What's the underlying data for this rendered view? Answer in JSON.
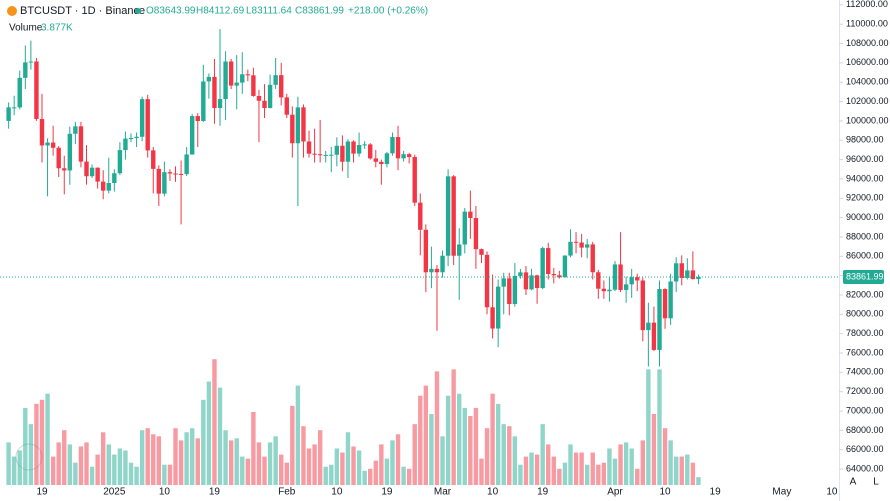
{
  "chart_data": {
    "type": "candlestick",
    "symbol": "BTCUSDT · 1D · Binance",
    "legend": {
      "open": "O83643.99",
      "high": "H84112.69",
      "low": "L83111.64",
      "close": "C83861.99",
      "change": "+218.00 (+0.26%)"
    },
    "volume_label": "Volume",
    "volume_value": "3.877K",
    "last_price": {
      "value": 83861.99,
      "label": "83861.99"
    },
    "colors": {
      "up": "#22ab94",
      "down": "#f23645"
    },
    "ylim": [
      60700,
      112500
    ],
    "yticks": [
      {
        "value": 64000,
        "label": "64000.00"
      },
      {
        "value": 66000,
        "label": "66000.00"
      },
      {
        "value": 68000,
        "label": "68000.00"
      },
      {
        "value": 70000,
        "label": "70000.00"
      },
      {
        "value": 72000,
        "label": "72000.00"
      },
      {
        "value": 74000,
        "label": "74000.00"
      },
      {
        "value": 76000,
        "label": "76000.00"
      },
      {
        "value": 78000,
        "label": "78000.00"
      },
      {
        "value": 80000,
        "label": "80000.00"
      },
      {
        "value": 82000,
        "label": "82000.00"
      },
      {
        "value": 84000,
        "label": "84000.00"
      },
      {
        "value": 86000,
        "label": "86000.00"
      },
      {
        "value": 88000,
        "label": "88000.00"
      },
      {
        "value": 90000,
        "label": "90000.00"
      },
      {
        "value": 92000,
        "label": "92000.00"
      },
      {
        "value": 94000,
        "label": "94000.00"
      },
      {
        "value": 96000,
        "label": "96000.00"
      },
      {
        "value": 98000,
        "label": "98000.00"
      },
      {
        "value": 100000,
        "label": "100000.00"
      },
      {
        "value": 102000,
        "label": "102000.00"
      },
      {
        "value": 104000,
        "label": "104000.00"
      },
      {
        "value": 106000,
        "label": "106000.00"
      },
      {
        "value": 108000,
        "label": "108000.00"
      },
      {
        "value": 110000,
        "label": "110000.00"
      },
      {
        "value": 112000,
        "label": "112000.00"
      }
    ],
    "xticks": [
      {
        "value": 6,
        "label": "19"
      },
      {
        "value": 19,
        "label": "2025"
      },
      {
        "value": 28,
        "label": "10"
      },
      {
        "value": 37,
        "label": "19"
      },
      {
        "value": 50,
        "label": "Feb"
      },
      {
        "value": 59,
        "label": "10"
      },
      {
        "value": 68,
        "label": "19"
      },
      {
        "value": 78,
        "label": "Mar"
      },
      {
        "value": 87,
        "label": "10"
      },
      {
        "value": 96,
        "label": "19"
      },
      {
        "value": 109,
        "label": "Apr"
      },
      {
        "value": 118,
        "label": "10"
      },
      {
        "value": 127,
        "label": "19"
      },
      {
        "value": 139,
        "label": "May"
      },
      {
        "value": 148,
        "label": "10"
      }
    ],
    "volume_lim": [
      0,
      70000
    ],
    "candles": [
      [
        100000,
        101900,
        99200,
        101400
      ],
      [
        101400,
        102600,
        100600,
        101400
      ],
      [
        101400,
        105200,
        101200,
        104450
      ],
      [
        104450,
        107800,
        103300,
        106050
      ],
      [
        106050,
        108300,
        105300,
        106140
      ],
      [
        106140,
        106500,
        100000,
        100200
      ],
      [
        100200,
        102800,
        95700,
        97460
      ],
      [
        97460,
        98200,
        92200,
        97760
      ],
      [
        97760,
        99500,
        96400,
        97220
      ],
      [
        97220,
        97400,
        94200,
        95100
      ],
      [
        95100,
        96400,
        92400,
        94880
      ],
      [
        94880,
        99400,
        93400,
        98670
      ],
      [
        98670,
        99900,
        97600,
        99440
      ],
      [
        99440,
        99900,
        95200,
        95790
      ],
      [
        95790,
        97500,
        93400,
        94280
      ],
      [
        94280,
        95500,
        94100,
        95160
      ],
      [
        95160,
        95200,
        93000,
        93720
      ],
      [
        93720,
        94900,
        91900,
        92790
      ],
      [
        92790,
        96200,
        92500,
        93580
      ],
      [
        93580,
        95000,
        92700,
        94590
      ],
      [
        94590,
        97800,
        94400,
        96980
      ],
      [
        96980,
        98900,
        96000,
        98170
      ],
      [
        98170,
        98700,
        97800,
        98230
      ],
      [
        98230,
        98800,
        97300,
        98360
      ],
      [
        98360,
        102500,
        97900,
        102250
      ],
      [
        102250,
        102700,
        96200,
        96950
      ],
      [
        96950,
        97300,
        92500,
        95040
      ],
      [
        95040,
        95400,
        91200,
        92480
      ],
      [
        92480,
        95800,
        92200,
        94700
      ],
      [
        94700,
        95000,
        93800,
        94560
      ],
      [
        94560,
        95300,
        93700,
        94520
      ],
      [
        94520,
        95900,
        89300,
        94500
      ],
      [
        94500,
        97300,
        94300,
        96530
      ],
      [
        96530,
        100700,
        96500,
        100500
      ],
      [
        100500,
        100800,
        97300,
        99990
      ],
      [
        99990,
        105800,
        99900,
        104080
      ],
      [
        104080,
        104900,
        102300,
        104550
      ],
      [
        104550,
        106400,
        99700,
        101330
      ],
      [
        101330,
        109500,
        99500,
        102260
      ],
      [
        102260,
        107200,
        100100,
        106140
      ],
      [
        106140,
        106400,
        103300,
        103650
      ],
      [
        103650,
        106800,
        101200,
        103960
      ],
      [
        103960,
        107100,
        102800,
        104820
      ],
      [
        104820,
        105300,
        104100,
        104710
      ],
      [
        104710,
        105500,
        102500,
        102580
      ],
      [
        102580,
        103200,
        97800,
        102080
      ],
      [
        102080,
        103800,
        100300,
        101330
      ],
      [
        101330,
        104800,
        101300,
        103730
      ],
      [
        103730,
        106500,
        103300,
        104730
      ],
      [
        104730,
        106000,
        101600,
        102430
      ],
      [
        102430,
        102800,
        100300,
        100640
      ],
      [
        100640,
        101500,
        96200,
        97690
      ],
      [
        97690,
        102500,
        91200,
        101400
      ],
      [
        101400,
        101700,
        96200,
        97870
      ],
      [
        97870,
        99000,
        96200,
        96610
      ],
      [
        96610,
        99200,
        95700,
        96550
      ],
      [
        96550,
        100100,
        95700,
        96460
      ],
      [
        96460,
        96900,
        95700,
        96480
      ],
      [
        96480,
        97300,
        94700,
        96500
      ],
      [
        96500,
        98300,
        95300,
        97430
      ],
      [
        97430,
        98500,
        94800,
        95780
      ],
      [
        95780,
        98100,
        94100,
        97870
      ],
      [
        97870,
        98000,
        95700,
        96620
      ],
      [
        96620,
        98800,
        96300,
        97510
      ],
      [
        97510,
        97900,
        97100,
        97570
      ],
      [
        97570,
        97700,
        96000,
        96120
      ],
      [
        96120,
        97000,
        95200,
        95770
      ],
      [
        95770,
        96000,
        93400,
        95540
      ],
      [
        95540,
        96800,
        95200,
        96650
      ],
      [
        96650,
        98800,
        96400,
        98330
      ],
      [
        98330,
        99500,
        94900,
        96130
      ],
      [
        96130,
        96900,
        95800,
        96560
      ],
      [
        96560,
        96700,
        95600,
        96270
      ],
      [
        96270,
        96500,
        91200,
        91550
      ],
      [
        91550,
        92500,
        86100,
        88740
      ],
      [
        88740,
        89300,
        82300,
        84350
      ],
      [
        84350,
        87000,
        82700,
        84700
      ],
      [
        84700,
        85100,
        78300,
        84350
      ],
      [
        84350,
        86600,
        83800,
        86060
      ],
      [
        86060,
        95000,
        85000,
        94270
      ],
      [
        94270,
        94400,
        85100,
        86060
      ],
      [
        86060,
        88900,
        81500,
        87220
      ],
      [
        87220,
        91000,
        86300,
        90620
      ],
      [
        90620,
        92800,
        87800,
        89960
      ],
      [
        89960,
        91200,
        84700,
        86740
      ],
      [
        86740,
        86800,
        85300,
        86150
      ],
      [
        86150,
        86500,
        80000,
        80730
      ],
      [
        80730,
        84100,
        77500,
        78530
      ],
      [
        78530,
        83600,
        76600,
        82860
      ],
      [
        82860,
        84300,
        80000,
        83720
      ],
      [
        83720,
        84300,
        79900,
        81070
      ],
      [
        81070,
        85300,
        80800,
        83970
      ],
      [
        83970,
        84700,
        83700,
        84340
      ],
      [
        84340,
        85000,
        82000,
        82580
      ],
      [
        82580,
        84700,
        82500,
        84030
      ],
      [
        84030,
        84100,
        81100,
        82720
      ],
      [
        82720,
        87000,
        82600,
        86850
      ],
      [
        86850,
        87400,
        83600,
        84170
      ],
      [
        84170,
        84800,
        83200,
        84040
      ],
      [
        84040,
        84500,
        83700,
        83830
      ],
      [
        83830,
        86100,
        83800,
        86080
      ],
      [
        86080,
        88800,
        85900,
        87500
      ],
      [
        87500,
        88500,
        86300,
        87420
      ],
      [
        87420,
        88300,
        85900,
        86900
      ],
      [
        86900,
        87800,
        85800,
        87230
      ],
      [
        87230,
        87500,
        83600,
        84350
      ],
      [
        84350,
        84600,
        81600,
        82650
      ],
      [
        82650,
        83500,
        81600,
        82390
      ],
      [
        82390,
        83900,
        81300,
        82550
      ],
      [
        82550,
        85500,
        82400,
        85160
      ],
      [
        85160,
        88500,
        82300,
        82520
      ],
      [
        82520,
        83900,
        81200,
        83100
      ],
      [
        83100,
        84700,
        81700,
        83840
      ],
      [
        83840,
        84200,
        82400,
        83500
      ],
      [
        83500,
        83800,
        77200,
        78370
      ],
      [
        78370,
        81200,
        74600,
        79140
      ],
      [
        79140,
        80800,
        76200,
        76320
      ],
      [
        76320,
        83500,
        74600,
        82620
      ],
      [
        82620,
        82700,
        78500,
        79590
      ],
      [
        79590,
        84200,
        78900,
        83400
      ],
      [
        83400,
        85900,
        82300,
        85280
      ],
      [
        85280,
        86100,
        83000,
        83760
      ],
      [
        83760,
        85800,
        83600,
        84540
      ],
      [
        84540,
        86500,
        83600,
        83640
      ],
      [
        83643.99,
        84112.69,
        83111.64,
        83861.99
      ]
    ],
    "volumes": [
      21000,
      14000,
      17000,
      38000,
      30000,
      40000,
      42000,
      45000,
      14000,
      21000,
      27000,
      20000,
      11000,
      19000,
      21000,
      9000,
      15000,
      26000,
      20000,
      15000,
      18000,
      17000,
      11000,
      9000,
      27000,
      28000,
      25000,
      24000,
      10000,
      10000,
      28000,
      22000,
      26000,
      28000,
      23000,
      42000,
      51000,
      62000,
      48000,
      27000,
      22000,
      23000,
      14000,
      13000,
      36000,
      21000,
      14000,
      21000,
      24000,
      15000,
      11000,
      39000,
      49000,
      29000,
      18000,
      20000,
      27000,
      9000,
      10000,
      18000,
      16000,
      26000,
      19000,
      17000,
      7000,
      8000,
      12000,
      20000,
      13000,
      22000,
      25000,
      9000,
      8000,
      30000,
      44000,
      49000,
      35000,
      56000,
      24000,
      44000,
      57000,
      45000,
      38000,
      34000,
      38000,
      13000,
      28000,
      45000,
      40000,
      30000,
      29000,
      24000,
      10000,
      14000,
      16000,
      15000,
      30000,
      20000,
      14000,
      8000,
      11000,
      20000,
      16000,
      16000,
      10000,
      16000,
      10000,
      11000,
      18000,
      13000,
      20000,
      21000,
      18000,
      8000,
      22000,
      57000,
      35000,
      57000,
      28000,
      22000,
      14000,
      14000,
      15000,
      11000,
      3877
    ],
    "buttons": [
      "A",
      "L"
    ]
  }
}
